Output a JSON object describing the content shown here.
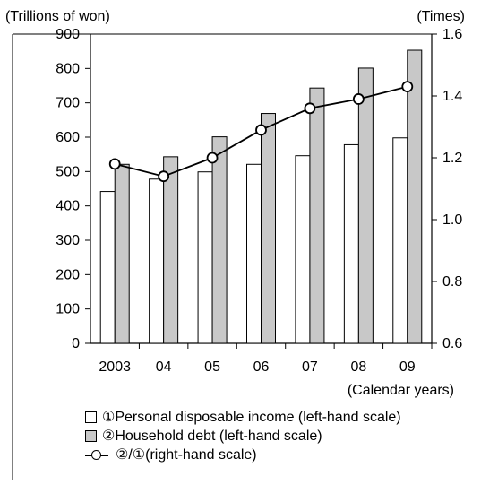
{
  "chart_data": {
    "type": "bar",
    "left_axis_unit": "(Trillions of won)",
    "right_axis_unit": "(Times)",
    "x_unit": "(Calendar years)",
    "categories": [
      "2003",
      "04",
      "05",
      "06",
      "07",
      "08",
      "09"
    ],
    "left_axis": {
      "ylim": [
        0,
        900
      ],
      "ticks": [
        "0",
        "100",
        "200",
        "300",
        "400",
        "500",
        "600",
        "700",
        "800",
        "900"
      ]
    },
    "right_axis": {
      "ylim": [
        0.6,
        1.6
      ],
      "ticks": [
        "0.6",
        "0.8",
        "1.0",
        "1.2",
        "1.4",
        "1.6"
      ]
    },
    "series": [
      {
        "name": "①Personal disposable income (left-hand scale)",
        "type": "bar",
        "axis": "left",
        "color": "#ffffff",
        "values": [
          442,
          478,
          499,
          521,
          546,
          578,
          598
        ]
      },
      {
        "name": "②Household debt (left-hand scale)",
        "type": "bar",
        "axis": "left",
        "color": "#c8c8c8",
        "values": [
          521,
          543,
          601,
          669,
          743,
          801,
          853
        ]
      },
      {
        "name": "②/①(right-hand scale)",
        "type": "line",
        "axis": "right",
        "color": "#000000",
        "values": [
          1.18,
          1.14,
          1.2,
          1.29,
          1.36,
          1.39,
          1.43
        ]
      }
    ],
    "grid": false,
    "legend_position": "bottom"
  }
}
